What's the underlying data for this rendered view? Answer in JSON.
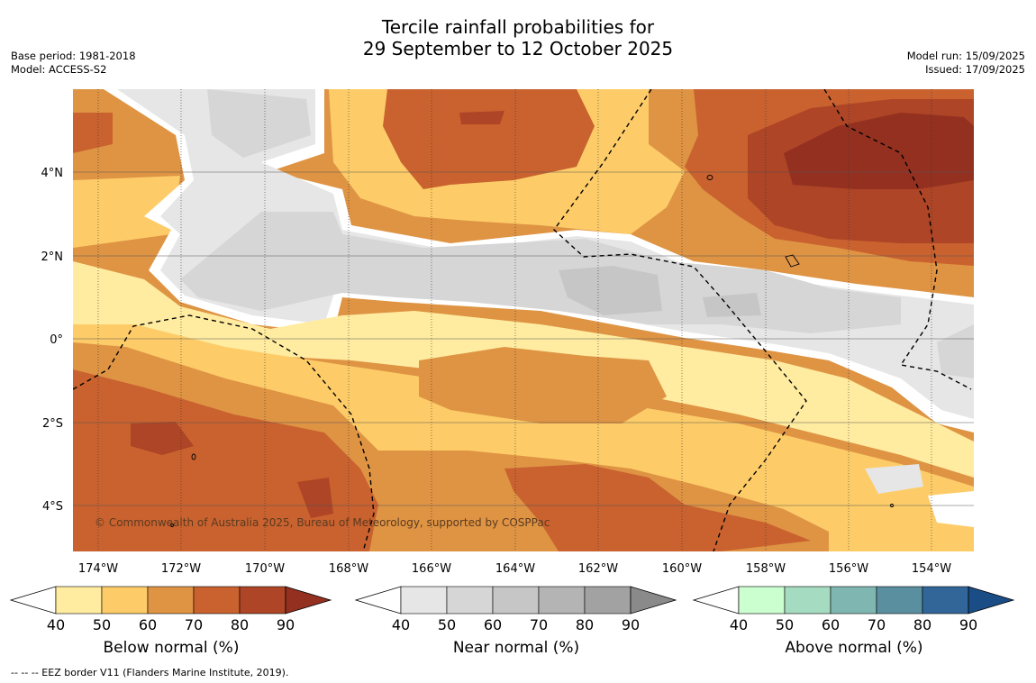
{
  "title_line1": "Tercile rainfall probabilities for",
  "title_line2": "29 September to 12 October 2025",
  "base_period": "Base period: 1981-2018",
  "model": "Model: ACCESS-S2",
  "model_run": "Model run: 15/09/2025",
  "issued": "Issued: 17/09/2025",
  "copyright": "© Commonwealth of Australia 2025, Bureau of Meteorology, supported by COSPPac",
  "lat_labels": [
    "4°N",
    "2°N",
    "0°",
    "2°S",
    "4°S"
  ],
  "lon_labels": [
    "174°W",
    "172°W",
    "170°W",
    "168°W",
    "166°W",
    "164°W",
    "162°W",
    "160°W",
    "158°W",
    "156°W",
    "154°W"
  ],
  "colorbars": [
    {
      "label": "Below normal (%)",
      "ticks": [
        "40",
        "50",
        "60",
        "70",
        "80",
        "90"
      ],
      "colors": [
        "#ffffff",
        "#ffeca0",
        "#fdcc68",
        "#df9444",
        "#c9622f",
        "#ad4526",
        "#933020"
      ]
    },
    {
      "label": "Near normal (%)",
      "ticks": [
        "40",
        "50",
        "60",
        "70",
        "80",
        "90"
      ],
      "colors": [
        "#ffffff",
        "#e6e6e6",
        "#d6d6d6",
        "#c6c6c6",
        "#b4b4b4",
        "#a2a2a2",
        "#8a8a8a"
      ]
    },
    {
      "label": "Above normal (%)",
      "ticks": [
        "40",
        "50",
        "60",
        "70",
        "80",
        "90"
      ],
      "colors": [
        "#ffffff",
        "#ccffd0",
        "#a5dbc0",
        "#80b6b2",
        "#5a8fa0",
        "#326699",
        "#1a4d85"
      ]
    }
  ],
  "legend_footnote": "-- -- -- EEZ border V11 (Flanders Marine Institute, 2019)."
}
